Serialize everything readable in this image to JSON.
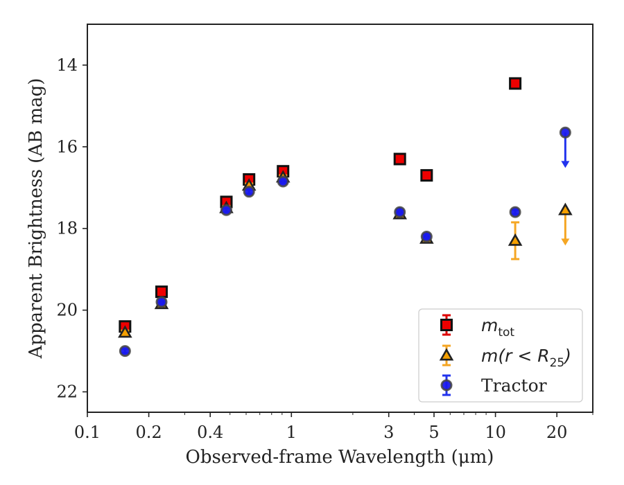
{
  "chart_data": {
    "type": "scatter",
    "xlabel": "Observed-frame Wavelength (μm)",
    "ylabel": "Apparent Brightness (AB mag)",
    "xscale": "log",
    "yinverted": true,
    "xlim": [
      0.1,
      30
    ],
    "ylim": [
      22.5,
      13
    ],
    "xticks": [
      {
        "value": 0.1,
        "label": "0.1"
      },
      {
        "value": 0.2,
        "label": "0.2"
      },
      {
        "value": 0.4,
        "label": "0.4"
      },
      {
        "value": 1,
        "label": "1"
      },
      {
        "value": 3,
        "label": "3"
      },
      {
        "value": 5,
        "label": "5"
      },
      {
        "value": 10,
        "label": "10"
      },
      {
        "value": 20,
        "label": "20"
      }
    ],
    "yticks": [
      {
        "value": 14,
        "label": "14"
      },
      {
        "value": 16,
        "label": "16"
      },
      {
        "value": 18,
        "label": "18"
      },
      {
        "value": 20,
        "label": "20"
      },
      {
        "value": 22,
        "label": "22"
      }
    ],
    "grid": false,
    "legend_position": "bottom-right",
    "series": [
      {
        "key": "mtot",
        "marker": "square",
        "fill": "#ee0000",
        "edge": "#111111",
        "errcolor": "#dd0000",
        "points": [
          {
            "x": 0.153,
            "y": 20.4,
            "err": 0.05
          },
          {
            "x": 0.231,
            "y": 19.55,
            "err": 0.05
          },
          {
            "x": 0.48,
            "y": 17.35,
            "err": 0.05
          },
          {
            "x": 0.62,
            "y": 16.8,
            "err": 0.05
          },
          {
            "x": 0.91,
            "y": 16.6,
            "err": 0.05
          },
          {
            "x": 3.4,
            "y": 16.3,
            "err": 0.05
          },
          {
            "x": 4.6,
            "y": 16.7,
            "err": 0.05
          },
          {
            "x": 12.5,
            "y": 14.45,
            "err": 0.05
          }
        ]
      },
      {
        "key": "mr25",
        "marker": "triangle",
        "fill": "#f5a000",
        "edge": "#222222",
        "errcolor": "#f5a623",
        "points": [
          {
            "x": 0.153,
            "y": 20.55,
            "err": 0.05
          },
          {
            "x": 0.231,
            "y": 19.85,
            "err": 0.05
          },
          {
            "x": 0.48,
            "y": 17.5,
            "err": 0.05
          },
          {
            "x": 0.62,
            "y": 16.95,
            "err": 0.05
          },
          {
            "x": 0.91,
            "y": 16.75,
            "err": 0.05
          },
          {
            "x": 3.4,
            "y": 17.65,
            "err": 0.05
          },
          {
            "x": 4.6,
            "y": 18.25,
            "err": 0.05
          },
          {
            "x": 12.5,
            "y": 18.3,
            "err": 0.45
          },
          {
            "x": 22.0,
            "y": 17.55,
            "upper_limit_to": 18.4
          }
        ]
      },
      {
        "key": "tractor",
        "marker": "circle",
        "fill": "#1a1aee",
        "edge": "#444444",
        "errcolor": "#2233ee",
        "points": [
          {
            "x": 0.153,
            "y": 21.0,
            "err": 0.05
          },
          {
            "x": 0.231,
            "y": 19.8,
            "err": 0.05
          },
          {
            "x": 0.48,
            "y": 17.55,
            "err": 0.05
          },
          {
            "x": 0.62,
            "y": 17.1,
            "err": 0.05
          },
          {
            "x": 0.91,
            "y": 16.85,
            "err": 0.05
          },
          {
            "x": 3.4,
            "y": 17.6,
            "err": 0.05
          },
          {
            "x": 4.6,
            "y": 18.2,
            "err": 0.05
          },
          {
            "x": 12.5,
            "y": 17.6,
            "err": 0.05
          },
          {
            "x": 22.0,
            "y": 15.65,
            "upper_limit_to": 16.5
          }
        ]
      }
    ],
    "legend": [
      {
        "key": "mtot",
        "math": true,
        "base": "m",
        "sub": "tot",
        "marker": "square"
      },
      {
        "key": "mr25",
        "math": true,
        "base": "m(r < R",
        "sub": "25",
        "tail": ")",
        "marker": "triangle"
      },
      {
        "key": "tractor",
        "math": false,
        "text": "Tractor",
        "marker": "circle"
      }
    ]
  }
}
